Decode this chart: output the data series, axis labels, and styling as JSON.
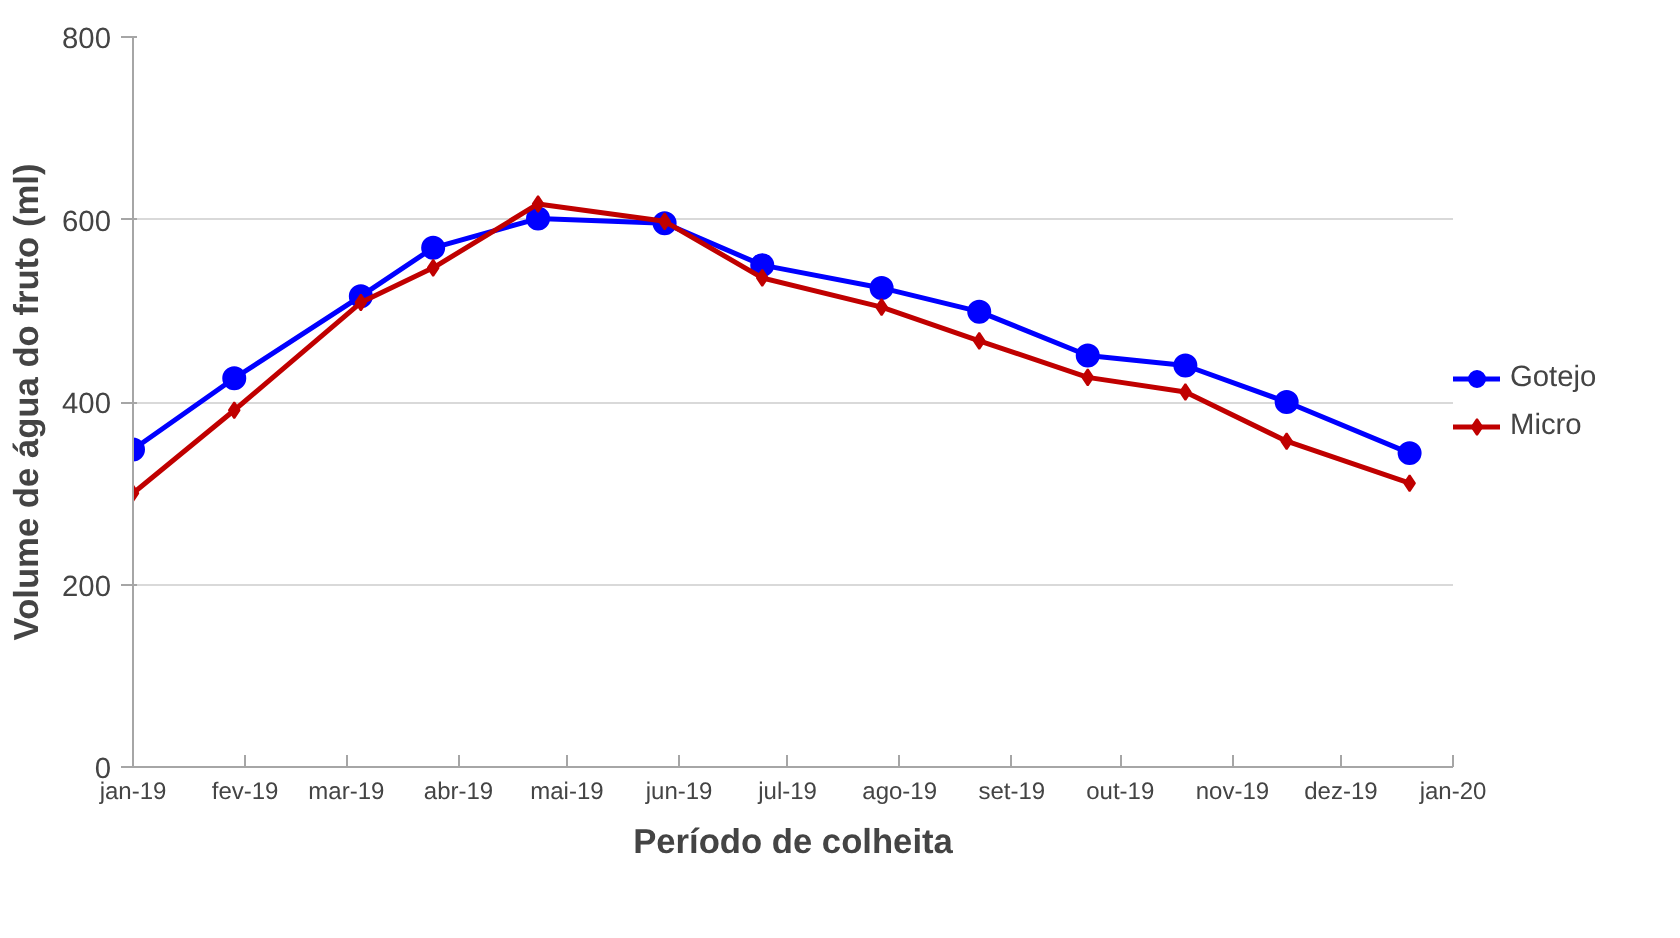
{
  "chart_data": {
    "type": "line",
    "xlabel": "Período de colheita",
    "ylabel": "Volume de água do fruto (ml)",
    "x": [
      "2019-01-01",
      "2019-01-29",
      "2019-03-05",
      "2019-03-25",
      "2019-04-23",
      "2019-05-28",
      "2019-06-24",
      "2019-07-27",
      "2019-08-23",
      "2019-09-22",
      "2019-10-19",
      "2019-11-16",
      "2019-12-20"
    ],
    "series": [
      {
        "name": "Gotejo",
        "color": "#0000ff",
        "marker": "circle",
        "values": [
          348,
          426,
          516,
          569,
          601,
          596,
          550,
          525,
          499,
          451,
          440,
          400,
          344
        ]
      },
      {
        "name": "Micro",
        "color": "#c00000",
        "marker": "diamond",
        "values": [
          300,
          391,
          509,
          547,
          617,
          598,
          536,
          504,
          467,
          427,
          411,
          357,
          311
        ]
      }
    ],
    "xlim": [
      "2019-01-01",
      "2020-01-01"
    ],
    "xticks": [
      {
        "value": "2019-01-01",
        "label": "jan-19"
      },
      {
        "value": "2019-02-01",
        "label": "fev-19"
      },
      {
        "value": "2019-03-01",
        "label": "mar-19"
      },
      {
        "value": "2019-04-01",
        "label": "abr-19"
      },
      {
        "value": "2019-05-01",
        "label": "mai-19"
      },
      {
        "value": "2019-06-01",
        "label": "jun-19"
      },
      {
        "value": "2019-07-01",
        "label": "jul-19"
      },
      {
        "value": "2019-08-01",
        "label": "ago-19"
      },
      {
        "value": "2019-09-01",
        "label": "set-19"
      },
      {
        "value": "2019-10-01",
        "label": "out-19"
      },
      {
        "value": "2019-11-01",
        "label": "nov-19"
      },
      {
        "value": "2019-12-01",
        "label": "dez-19"
      },
      {
        "value": "2020-01-01",
        "label": "jan-20"
      }
    ],
    "ylim": [
      0,
      800
    ],
    "yticks": [
      0,
      200,
      400,
      600,
      800
    ],
    "grid": "y",
    "legend": "right",
    "line_style": "solid"
  }
}
